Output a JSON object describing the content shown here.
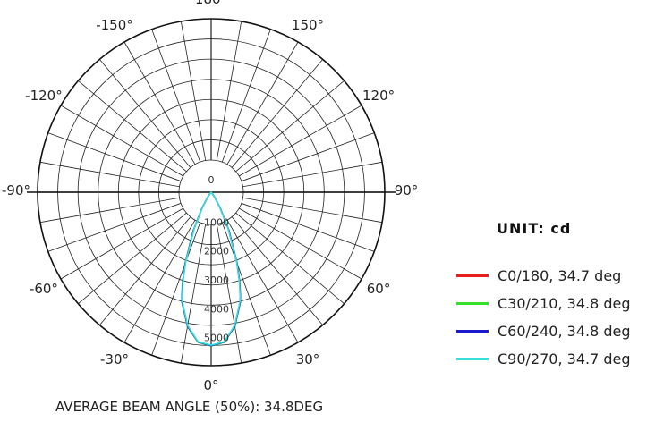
{
  "chart_data": {
    "type": "polar",
    "unit_title": "UNIT: cd",
    "angle_labels": [
      {
        "deg": 180,
        "text": "180°"
      },
      {
        "deg": -150,
        "text": "-150°"
      },
      {
        "deg": 150,
        "text": "150°"
      },
      {
        "deg": -120,
        "text": "-120°"
      },
      {
        "deg": 120,
        "text": "120°"
      },
      {
        "deg": -90,
        "text": "-90°"
      },
      {
        "deg": 90,
        "text": "90°"
      },
      {
        "deg": -60,
        "text": "-60°"
      },
      {
        "deg": 60,
        "text": "60°"
      },
      {
        "deg": -30,
        "text": "-30°"
      },
      {
        "deg": 30,
        "text": "30°"
      },
      {
        "deg": 0,
        "text": "0°"
      }
    ],
    "radial_ticks": [
      {
        "value": 0,
        "text": "0"
      },
      {
        "value": 1000,
        "text": "1000"
      },
      {
        "value": 2000,
        "text": "2000"
      },
      {
        "value": 3000,
        "text": "3000"
      },
      {
        "value": 4000,
        "text": "4000"
      },
      {
        "value": 5000,
        "text": "5000"
      }
    ],
    "rmax": 6000,
    "angles": [
      -45,
      -40,
      -35,
      -30,
      -25,
      -20,
      -17.4,
      -15,
      -10,
      -5,
      0,
      5,
      10,
      15,
      17.4,
      20,
      25,
      30,
      35,
      40,
      45
    ],
    "series": [
      {
        "name": "C0/180, 34.7 deg",
        "color": "#e8201c",
        "values": [
          0,
          50,
          200,
          600,
          1400,
          2600,
          3300,
          3900,
          4700,
          5200,
          5300,
          5200,
          4700,
          3900,
          3300,
          2600,
          1400,
          600,
          200,
          50,
          0
        ]
      },
      {
        "name": "C30/210, 34.8 deg",
        "color": "#35e02a",
        "values": [
          0,
          50,
          220,
          620,
          1450,
          2650,
          3330,
          3920,
          4720,
          5210,
          5320,
          5210,
          4720,
          3920,
          3330,
          2650,
          1450,
          620,
          220,
          50,
          0
        ]
      },
      {
        "name": "C60/240, 34.8 deg",
        "color": "#1a1acc",
        "values": [
          0,
          50,
          220,
          610,
          1450,
          2640,
          3320,
          3910,
          4710,
          5200,
          5310,
          5200,
          4710,
          3910,
          3320,
          2640,
          1450,
          610,
          220,
          50,
          0
        ]
      },
      {
        "name": "C90/270, 34.7 deg",
        "color": "#33e0e0",
        "values": [
          0,
          50,
          200,
          580,
          1380,
          2580,
          3280,
          3880,
          4680,
          5190,
          5290,
          5190,
          4680,
          3880,
          3280,
          2580,
          1380,
          580,
          200,
          50,
          0
        ]
      }
    ],
    "footer": "AVERAGE BEAM ANGLE (50%): 34.8DEG"
  }
}
